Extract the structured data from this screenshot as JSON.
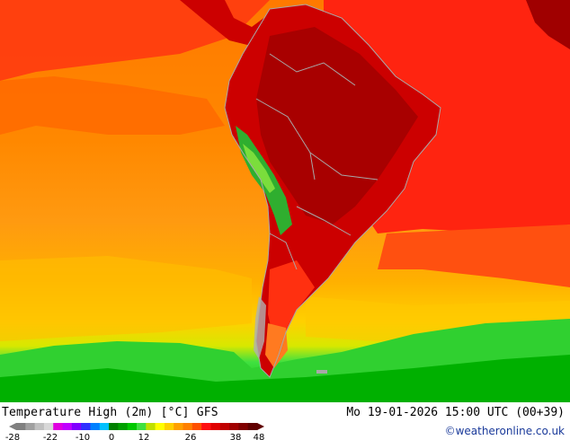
{
  "map": {
    "title": "Temperature High (2m) [°C] GFS",
    "valid_time": "Mo 19-01-2026 15:00 UTC (00+39)",
    "credit": "©weatheronline.co.uk",
    "region": "South America",
    "units": "°C"
  },
  "legend": {
    "ticks": [
      "-28",
      "-22",
      "-10",
      "0",
      "12",
      "26",
      "38",
      "48"
    ],
    "colors": [
      "#808080",
      "#a0a0a0",
      "#c0c0c0",
      "#d8d8d8",
      "#e000e0",
      "#c000ff",
      "#8000ff",
      "#3030ff",
      "#0080ff",
      "#00c0ff",
      "#008000",
      "#00a000",
      "#00c800",
      "#40e040",
      "#c0e000",
      "#ffff00",
      "#ffd000",
      "#ffa000",
      "#ff8000",
      "#ff5000",
      "#ff1010",
      "#e00000",
      "#c00000",
      "#a00000",
      "#800000",
      "#600000"
    ]
  },
  "palette": {
    "ocean_warm": "#ff7a00",
    "ocean_hot": "#ff2a10",
    "ocean_mild": "#ffa010",
    "ocean_cool": "#ffd000",
    "cold_band": "#00c800",
    "land_hot": "#cc0000",
    "land_very_hot": "#a80000",
    "andes": "#2fae2f",
    "border": "#a8a8a8"
  }
}
